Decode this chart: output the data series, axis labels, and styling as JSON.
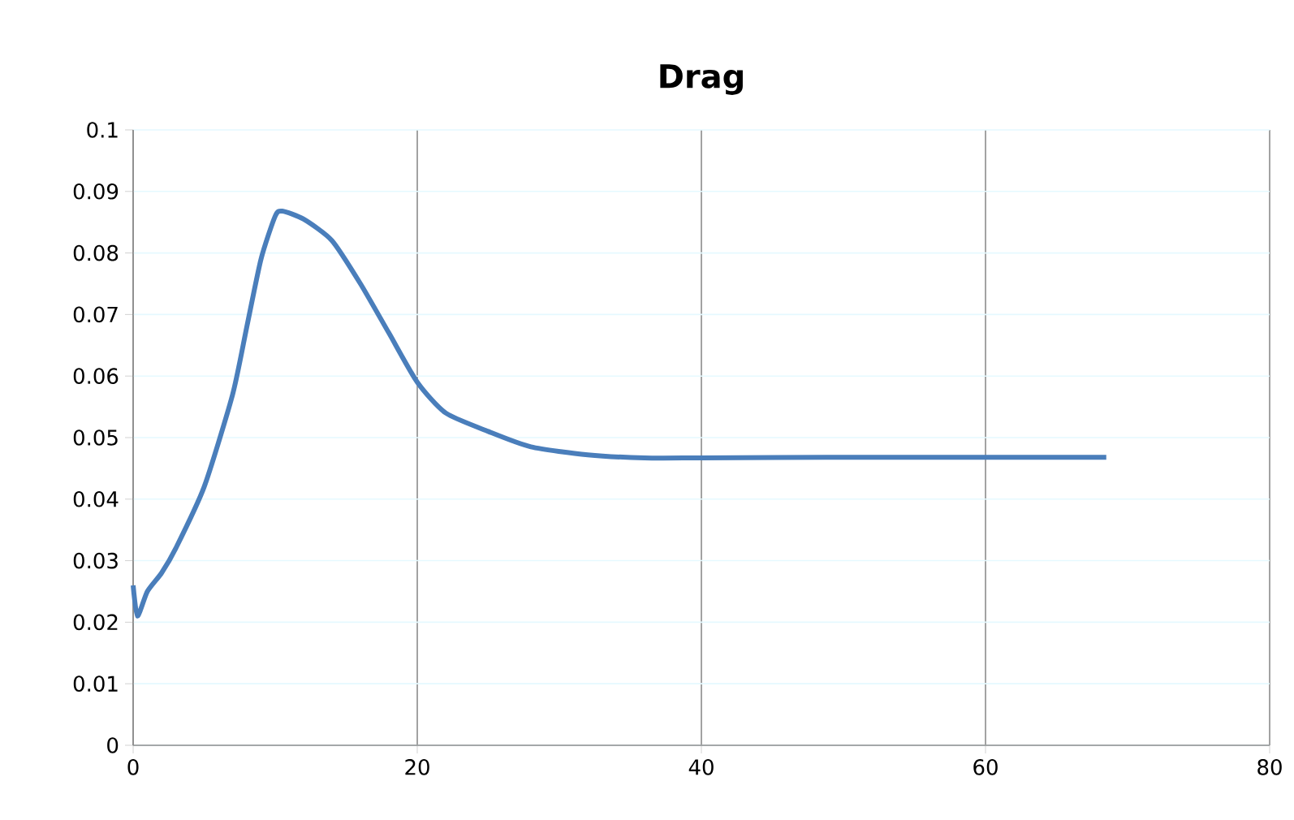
{
  "chart_data": {
    "type": "line",
    "title": "Drag",
    "grid": true,
    "marker": "none",
    "line_style": "solid",
    "xlim": [
      0,
      80
    ],
    "xticks": [
      0,
      20,
      40,
      60,
      80
    ],
    "ylim": [
      0,
      0.1
    ],
    "yticks": [
      0,
      0.01,
      0.02,
      0.03,
      0.04,
      0.05,
      0.06,
      0.07,
      0.08,
      0.09,
      0.1
    ],
    "series": [
      {
        "color": "#4a7ebb",
        "x": [
          0,
          0.3,
          1,
          2,
          3,
          5,
          7,
          8,
          9,
          10,
          10.5,
          12,
          14,
          16,
          18,
          20,
          22,
          25,
          28,
          32,
          36,
          40,
          50,
          60,
          68.5
        ],
        "values": [
          0.026,
          0.021,
          0.025,
          0.028,
          0.032,
          0.042,
          0.057,
          0.068,
          0.079,
          0.086,
          0.0868,
          0.0855,
          0.082,
          0.075,
          0.067,
          0.059,
          0.054,
          0.051,
          0.0485,
          0.0472,
          0.0467,
          0.0467,
          0.0468,
          0.0468,
          0.0468
        ]
      }
    ]
  }
}
